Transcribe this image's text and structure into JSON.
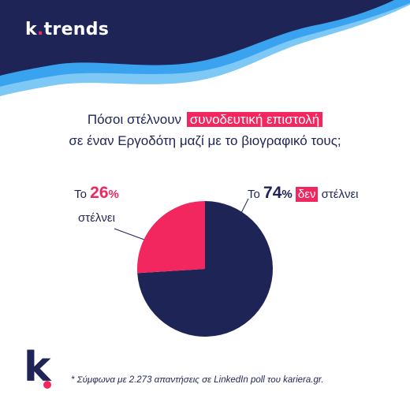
{
  "brand": {
    "name_start": "k",
    "name_end": "trends"
  },
  "question": {
    "line1_before": "Πόσοι στέλνουν",
    "line1_highlight": "συνοδευτική επιστολή",
    "line2": "σε έναν Εργοδότη μαζί με το βιογραφικό τους;"
  },
  "labels": {
    "left_prefix": "Το",
    "left_value": "26",
    "left_unit": "%",
    "left_suffix": "στέλνει",
    "right_prefix": "Το",
    "right_value": "74",
    "right_unit": "%",
    "right_chip": "δεν",
    "right_suffix": "στέλνει"
  },
  "logo": {
    "letter": "k"
  },
  "footnote": "* Σύμφωνα με 2.273 απαντήσεις σε LinkedIn poll του kariera.gr.",
  "colors": {
    "navy": "#1e2456",
    "pink": "#f2275f",
    "light_blue": "#3aa3f0"
  },
  "chart_data": {
    "type": "pie",
    "title": "",
    "slices": [
      {
        "label": "Το 74% δεν στέλνει",
        "value": 74,
        "color": "#1e2456"
      },
      {
        "label": "Το 26% στέλνει",
        "value": 26,
        "color": "#f2275f"
      }
    ]
  }
}
